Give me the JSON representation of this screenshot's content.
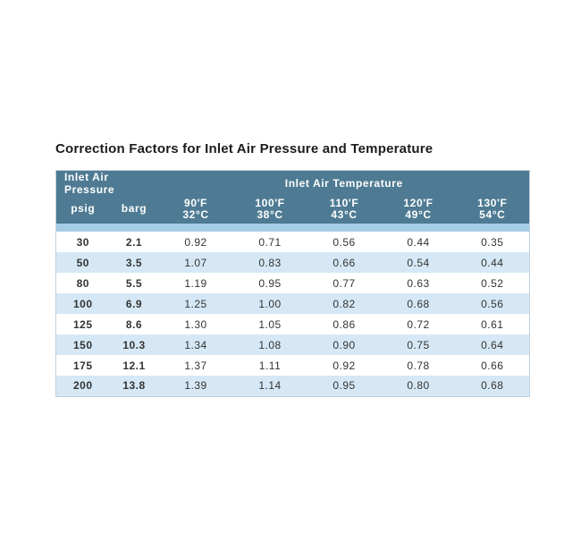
{
  "page": {
    "title": "Correction Factors for Inlet Air Pressure and Temperature"
  },
  "table": {
    "group_headers": {
      "pressure": "Inlet Air Pressure",
      "temperature": "Inlet Air Temperature"
    },
    "columns": [
      {
        "label": "psig"
      },
      {
        "label": "barg"
      },
      {
        "f": "90'F",
        "c": "32°C"
      },
      {
        "f": "100'F",
        "c": "38°C"
      },
      {
        "f": "110'F",
        "c": "43°C"
      },
      {
        "f": "120'F",
        "c": "49°C"
      },
      {
        "f": "130'F",
        "c": "54°C"
      }
    ],
    "rows": [
      {
        "psig": "30",
        "barg": "2.1",
        "factors": [
          "0.92",
          "0.71",
          "0.56",
          "0.44",
          "0.35"
        ]
      },
      {
        "psig": "50",
        "barg": "3.5",
        "factors": [
          "1.07",
          "0.83",
          "0.66",
          "0.54",
          "0.44"
        ]
      },
      {
        "psig": "80",
        "barg": "5.5",
        "factors": [
          "1.19",
          "0.95",
          "0.77",
          "0.63",
          "0.52"
        ]
      },
      {
        "psig": "100",
        "barg": "6.9",
        "factors": [
          "1.25",
          "1.00",
          "0.82",
          "0.68",
          "0.56"
        ]
      },
      {
        "psig": "125",
        "barg": "8.6",
        "factors": [
          "1.30",
          "1.05",
          "0.86",
          "0.72",
          "0.61"
        ]
      },
      {
        "psig": "150",
        "barg": "10.3",
        "factors": [
          "1.34",
          "1.08",
          "0.90",
          "0.75",
          "0.64"
        ]
      },
      {
        "psig": "175",
        "barg": "12.1",
        "factors": [
          "1.37",
          "1.11",
          "0.92",
          "0.78",
          "0.66"
        ]
      },
      {
        "psig": "200",
        "barg": "13.8",
        "factors": [
          "1.39",
          "1.14",
          "0.95",
          "0.80",
          "0.68"
        ]
      }
    ]
  },
  "colors": {
    "header_bg": "#4E7B93",
    "header_text": "#FFFFFF",
    "band_below_header": "#A7CCE5",
    "row_alt": "#D6E8F5",
    "row_base": "#FFFFFF",
    "border": "#C0D1DE",
    "body_text": "#333333",
    "title_text": "#1C1C1C"
  },
  "chart_data": {
    "type": "table",
    "title": "Correction Factors for Inlet Air Pressure and Temperature",
    "column_groups": [
      {
        "label": "Inlet Air Pressure",
        "span": 2
      },
      {
        "label": "Inlet Air Temperature",
        "span": 5
      }
    ],
    "columns": [
      "psig",
      "barg",
      "90°F / 32°C",
      "100°F / 38°C",
      "110°F / 43°C",
      "120°F / 49°C",
      "130°F / 54°C"
    ],
    "rows": [
      [
        30,
        2.1,
        0.92,
        0.71,
        0.56,
        0.44,
        0.35
      ],
      [
        50,
        3.5,
        1.07,
        0.83,
        0.66,
        0.54,
        0.44
      ],
      [
        80,
        5.5,
        1.19,
        0.95,
        0.77,
        0.63,
        0.52
      ],
      [
        100,
        6.9,
        1.25,
        1.0,
        0.82,
        0.68,
        0.56
      ],
      [
        125,
        8.6,
        1.3,
        1.05,
        0.86,
        0.72,
        0.61
      ],
      [
        150,
        10.3,
        1.34,
        1.08,
        0.9,
        0.75,
        0.64
      ],
      [
        175,
        12.1,
        1.37,
        1.11,
        0.92,
        0.78,
        0.66
      ],
      [
        200,
        13.8,
        1.39,
        1.14,
        0.95,
        0.8,
        0.68
      ]
    ]
  }
}
